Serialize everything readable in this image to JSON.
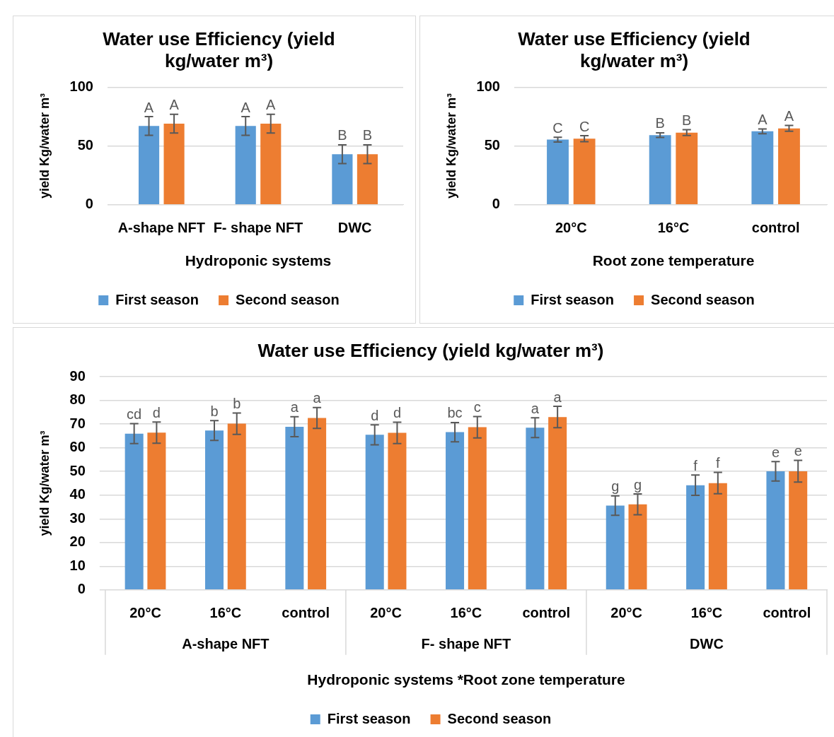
{
  "chart_data": [
    {
      "type": "bar",
      "title": "Water use Efficiency (yield kg/water m³)",
      "xlabel": "Hydroponic systems",
      "ylabel": "yield Kg/water m³",
      "categories": [
        "A-shape NFT",
        "F- shape NFT",
        "DWC"
      ],
      "ylim": [
        0,
        100
      ],
      "yticks": [
        0,
        50,
        100
      ],
      "grid": "y",
      "legend": "bottom",
      "series": [
        {
          "name": "First season",
          "color": "#5b9bd5",
          "values": [
            67,
            67,
            43
          ],
          "errors": [
            8,
            8,
            8
          ],
          "value_labels": [
            "A",
            "A",
            "B"
          ]
        },
        {
          "name": "Second season",
          "color": "#ed7d31",
          "values": [
            69,
            69,
            43
          ],
          "errors": [
            8,
            8,
            8
          ],
          "value_labels": [
            "A",
            "A",
            "B"
          ]
        }
      ]
    },
    {
      "type": "bar",
      "title": "Water use Efficiency (yield kg/water m³)",
      "xlabel": "Root zone temperature",
      "ylabel": "yield Kg/water m³",
      "categories": [
        "20°C",
        "16°C",
        "control"
      ],
      "ylim": [
        0,
        100
      ],
      "yticks": [
        0,
        50,
        100
      ],
      "grid": "y",
      "legend": "bottom",
      "series": [
        {
          "name": "First season",
          "color": "#5b9bd5",
          "values": [
            55.4,
            59.2,
            62.5
          ],
          "errors": [
            2,
            2,
            2
          ],
          "value_labels": [
            "C",
            "B",
            "A"
          ]
        },
        {
          "name": "Second season",
          "color": "#ed7d31",
          "values": [
            56.2,
            61.4,
            65
          ],
          "errors": [
            2.5,
            2.5,
            2.5
          ],
          "value_labels": [
            "C",
            "B",
            "A"
          ]
        }
      ]
    },
    {
      "type": "bar",
      "title": "Water use Efficiency (yield kg/water m³)",
      "xlabel": "Hydroponic systems *Root zone temperature",
      "ylabel": "yield Kg/water m³",
      "categories": [
        "20°C",
        "16°C",
        "control",
        "20°C",
        "16°C",
        "control",
        "20°C",
        "16°C",
        "control"
      ],
      "annotations": [
        "A-shape NFT",
        "F- shape NFT",
        "DWC"
      ],
      "ylim": [
        0,
        90
      ],
      "yticks": [
        0,
        10,
        20,
        30,
        40,
        50,
        60,
        70,
        80,
        90
      ],
      "grid": "y",
      "legend": "bottom",
      "series": [
        {
          "name": "First season",
          "color": "#5b9bd5",
          "values": [
            66,
            67.3,
            68.9,
            65.5,
            66.6,
            68.5,
            35.6,
            44.2,
            50.1
          ],
          "errors": [
            4.2,
            4.2,
            4.2,
            4.2,
            4.1,
            4.2,
            4.1,
            4.3,
            4.1
          ],
          "value_labels": [
            "cd",
            "b",
            "a",
            "d",
            "bc",
            "a",
            "g",
            "f",
            "e"
          ]
        },
        {
          "name": "Second season",
          "color": "#ed7d31",
          "values": [
            66.4,
            70.2,
            72.6,
            66.3,
            68.7,
            73,
            36.1,
            45.1,
            50.1
          ],
          "errors": [
            4.5,
            4.5,
            4.4,
            4.5,
            4.5,
            4.5,
            4.4,
            4.5,
            4.6
          ],
          "value_labels": [
            "d",
            "b",
            "a",
            "d",
            "c",
            "a",
            "g",
            "f",
            "e"
          ]
        }
      ]
    }
  ]
}
